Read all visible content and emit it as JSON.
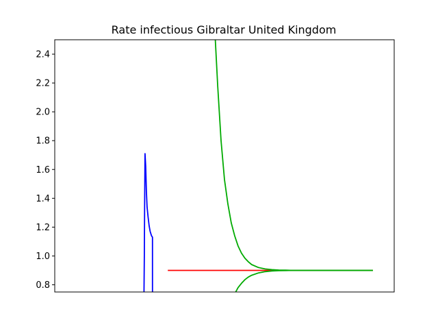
{
  "chart_data": {
    "type": "line",
    "title": "Rate infectious Gibraltar United Kingdom",
    "xlabel": "",
    "ylabel": "",
    "xlim": [
      0,
      100
    ],
    "ylim": [
      0.75,
      2.5
    ],
    "x_ticks_shown": false,
    "y_ticks": [
      0.8,
      1.0,
      1.2,
      1.4,
      1.6,
      1.8,
      2.0,
      2.2,
      2.4
    ],
    "grid": false,
    "series": [
      {
        "color": "#0000ff",
        "x": [
          26.3,
          26.4,
          26.5,
          26.6,
          26.8,
          27.0,
          27.2,
          27.5,
          27.8,
          28.1,
          28.5,
          28.8,
          28.8
        ],
        "y": [
          0.75,
          1.0,
          1.4,
          1.71,
          1.62,
          1.45,
          1.34,
          1.27,
          1.21,
          1.17,
          1.14,
          1.13,
          0.75
        ]
      },
      {
        "color": "#ff0000",
        "x": [
          33.3,
          93.7
        ],
        "y": [
          0.9,
          0.9
        ]
      },
      {
        "color": "#00aa00",
        "x": [
          47.3,
          48.0,
          49.0,
          50.0,
          51.0,
          52.0,
          53.0,
          54.0,
          55.0,
          56.0,
          57.0,
          58.0,
          60.0,
          62.0,
          64.0,
          66.0,
          68.0,
          70.0,
          73.0,
          76.0,
          80.0,
          85.0,
          90.0,
          93.7
        ],
        "y": [
          2.5,
          2.18,
          1.8,
          1.53,
          1.36,
          1.23,
          1.14,
          1.07,
          1.02,
          0.985,
          0.96,
          0.94,
          0.92,
          0.91,
          0.905,
          0.902,
          0.901,
          0.9,
          0.9,
          0.9,
          0.9,
          0.9,
          0.9,
          0.9
        ]
      },
      {
        "color": "#00aa00",
        "x": [
          53.3,
          54.0,
          55.0,
          56.0,
          57.0,
          58.0,
          60.0,
          62.0,
          64.0,
          66.0,
          68.0,
          70.0,
          73.0,
          76.0,
          80.0,
          85.0,
          90.0,
          93.7
        ],
        "y": [
          0.75,
          0.78,
          0.81,
          0.835,
          0.853,
          0.866,
          0.882,
          0.891,
          0.896,
          0.898,
          0.899,
          0.9,
          0.9,
          0.9,
          0.9,
          0.9,
          0.9,
          0.9
        ]
      }
    ]
  }
}
